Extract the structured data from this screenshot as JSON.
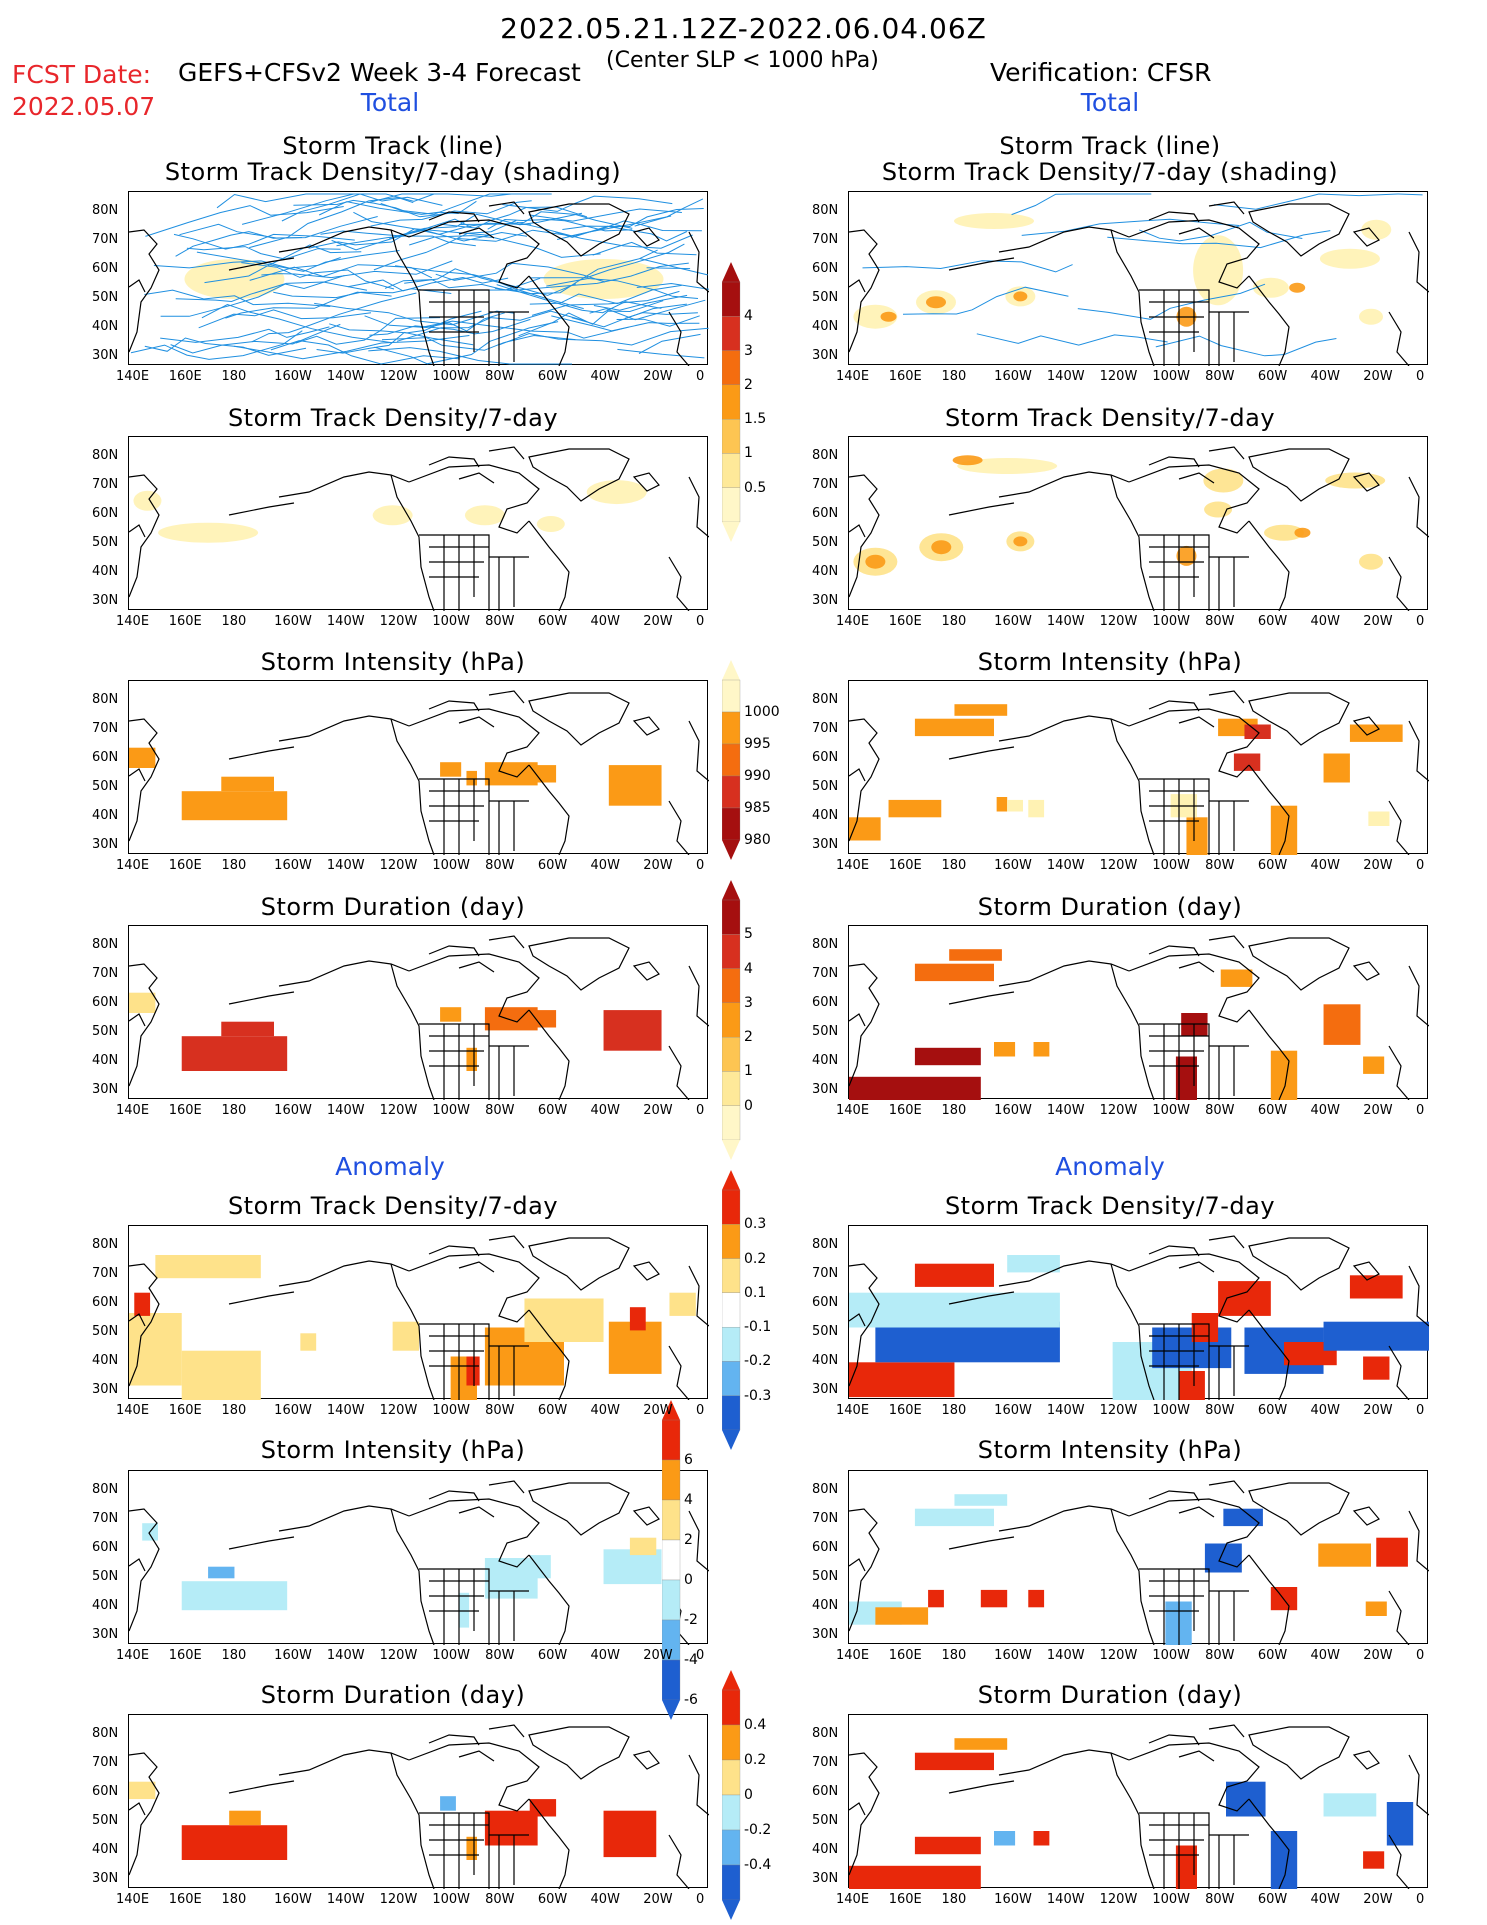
{
  "header": {
    "title": "2022.05.21.12Z-2022.06.04.06Z",
    "fcst_label": "FCST Date:",
    "fcst_date": "2022.05.07",
    "subtitle": "GEFS+CFSv2 Week 3-4 Forecast",
    "slp_note": "(Center SLP < 1000 hPa)",
    "verification": "Verification: CFSR"
  },
  "sections": {
    "total": "Total",
    "anomaly": "Anomaly"
  },
  "panel_titles": {
    "track": "Storm Track (line)",
    "track2": "Storm Track Density/7-day (shading)",
    "density": "Storm Track Density/7-day",
    "intensity": "Storm Intensity (hPa)",
    "duration": "Storm Duration (day)"
  },
  "axes": {
    "x_ticks": [
      "140E",
      "160E",
      "180",
      "160W",
      "140W",
      "120W",
      "100W",
      "80W",
      "60W",
      "40W",
      "20W",
      "0"
    ],
    "y_ticks": [
      "80N",
      "70N",
      "60N",
      "50N",
      "40N",
      "30N"
    ]
  },
  "colorbars": {
    "density": {
      "labels": [
        "4",
        "3",
        "2",
        "1.5",
        "1",
        "0.5"
      ],
      "colors": [
        "#a50f0f",
        "#d7301f",
        "#f46d0f",
        "#fb9a16",
        "#fdc552",
        "#fee999",
        "#fff7c8"
      ]
    },
    "intensity": {
      "labels": [
        "1000",
        "995",
        "990",
        "985",
        "980"
      ],
      "colors": [
        "#fff7c8",
        "#fb9a16",
        "#f46d0f",
        "#d7301f",
        "#a50f0f"
      ]
    },
    "duration": {
      "labels": [
        "5",
        "4",
        "3",
        "2",
        "1",
        "0"
      ],
      "colors": [
        "#a50f0f",
        "#d7301f",
        "#f46d0f",
        "#fb9a16",
        "#fdc552",
        "#fee999",
        "#fff7c8"
      ]
    },
    "anom_density": {
      "labels": [
        "0.3",
        "0.2",
        "0.1",
        "-0.1",
        "-0.2",
        "-0.3"
      ],
      "colors": [
        "#e8280a",
        "#fb9a16",
        "#fee28a",
        "#ffffff",
        "#b5ecf7",
        "#63b4f0",
        "#1e5fd0"
      ]
    },
    "anom_intensity": {
      "labels": [
        "6",
        "4",
        "2",
        "0",
        "-2",
        "-4",
        "-6"
      ],
      "colors": [
        "#e8280a",
        "#fb9a16",
        "#fee28a",
        "#ffffff",
        "#b5ecf7",
        "#63b4f0",
        "#1e5fd0"
      ]
    },
    "anom_duration": {
      "labels": [
        "0.4",
        "0.2",
        "0",
        "-0.2",
        "-0.4"
      ],
      "colors": [
        "#e8280a",
        "#fb9a16",
        "#fee28a",
        "#b5ecf7",
        "#63b4f0",
        "#1e5fd0"
      ]
    }
  },
  "palette": {
    "track_line": "#1f8fe0",
    "red": "#e8280a",
    "orange": "#fb9a16",
    "yellow": "#fee28a",
    "pale": "#fff2b3",
    "darkred": "#a50f0f",
    "ltblue": "#b5ecf7",
    "blue": "#1e5fd0"
  }
}
